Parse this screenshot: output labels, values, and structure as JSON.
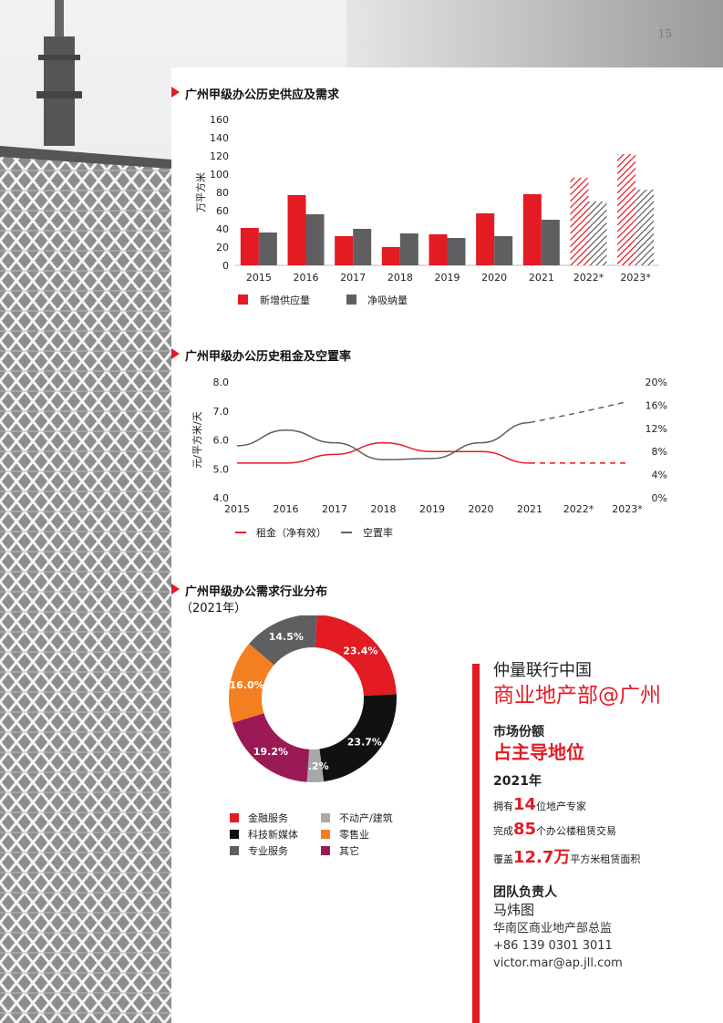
{
  "page_number": "15",
  "colors": {
    "red": "#e31b23",
    "gray": "#5f5f62",
    "light_gray": "#a7a8aa",
    "black": "#111111",
    "orange": "#f47f20",
    "purple": "#9b1a55"
  },
  "supply_chart": {
    "title": "广州甲级办公历史供应及需求",
    "chart_data": {
      "type": "bar",
      "ylabel": "万平方米",
      "ylim": [
        0,
        160
      ],
      "yticks": [
        0,
        20,
        40,
        60,
        80,
        100,
        120,
        140,
        160
      ],
      "categories": [
        "2015",
        "2016",
        "2017",
        "2018",
        "2019",
        "2020",
        "2021",
        "2022*",
        "2023*"
      ],
      "forecast_categories": [
        "2022*",
        "2023*"
      ],
      "series": [
        {
          "name": "新增供应量",
          "values": [
            41,
            77,
            32,
            20,
            34,
            57,
            78,
            96,
            122
          ]
        },
        {
          "name": "净吸纳量",
          "values": [
            36,
            56,
            40,
            35,
            30,
            32,
            50,
            70,
            83
          ]
        }
      ]
    }
  },
  "rent_chart": {
    "title": "广州甲级办公历史租金及空置率",
    "chart_data": {
      "type": "line",
      "ylabel": "元/平方米/天",
      "ylim": [
        4.0,
        8.0
      ],
      "yticks": [
        "4.0",
        "5.0",
        "6.0",
        "7.0",
        "8.0"
      ],
      "y2lim": [
        0,
        20
      ],
      "y2ticks": [
        "0%",
        "4%",
        "8%",
        "12%",
        "16%",
        "20%"
      ],
      "categories": [
        "2015",
        "2016",
        "2017",
        "2018",
        "2019",
        "2020",
        "2021",
        "2022*",
        "2023*"
      ],
      "series": [
        {
          "name": "租金（净有效）",
          "axis": "left",
          "values": [
            5.2,
            5.2,
            5.5,
            5.9,
            5.6,
            5.6,
            5.2,
            5.2,
            5.2
          ]
        },
        {
          "name": "空置率",
          "axis": "right",
          "values": [
            9.0,
            11.7,
            9.5,
            6.6,
            6.8,
            9.5,
            13.0,
            14.7,
            16.6
          ]
        }
      ]
    }
  },
  "demand_chart": {
    "title": "广州甲级办公需求行业分布",
    "subtitle": "（2021年）",
    "chart_data": {
      "type": "pie",
      "donut": true,
      "slices": [
        {
          "name": "金融服务",
          "value": 23.4,
          "label": "23.4%",
          "color": "#e31b23"
        },
        {
          "name": "科技新媒体",
          "value": 23.7,
          "label": "23.7%",
          "color": "#111111"
        },
        {
          "name": "不动产/建筑",
          "value": 3.2,
          "label": "3.2%",
          "color": "#a7a8aa"
        },
        {
          "name": "其它",
          "value": 19.2,
          "label": "19.2%",
          "color": "#9b1a55"
        },
        {
          "name": "零售业",
          "value": 16.0,
          "label": "16.0%",
          "color": "#f47f20"
        },
        {
          "name": "专业服务",
          "value": 14.5,
          "label": "14.5%",
          "color": "#5f5f62"
        }
      ],
      "legend_order": [
        "金融服务",
        "不动产/建筑",
        "科技新媒体",
        "零售业",
        "专业服务",
        "其它"
      ]
    }
  },
  "info": {
    "company": "仲量联行中国",
    "department": "商业地产部@广州",
    "market_share_label": "市场份额",
    "market_share_value": "占主导地位",
    "year": "2021年",
    "stat1_pre": "拥有",
    "stat1_num": "14",
    "stat1_post": "位地产专家",
    "stat2_pre": "完成",
    "stat2_num": "85",
    "stat2_post": "个办公楼租赁交易",
    "stat3_pre": "覆盖",
    "stat3_num": "12.7万",
    "stat3_post": "平方米租赁面积",
    "leader_label": "团队负责人",
    "leader_name": "马炜图",
    "leader_title": "华南区商业地产部总监",
    "leader_phone": "+86 139 0301 3011",
    "leader_email": "victor.mar@ap.jll.com"
  }
}
